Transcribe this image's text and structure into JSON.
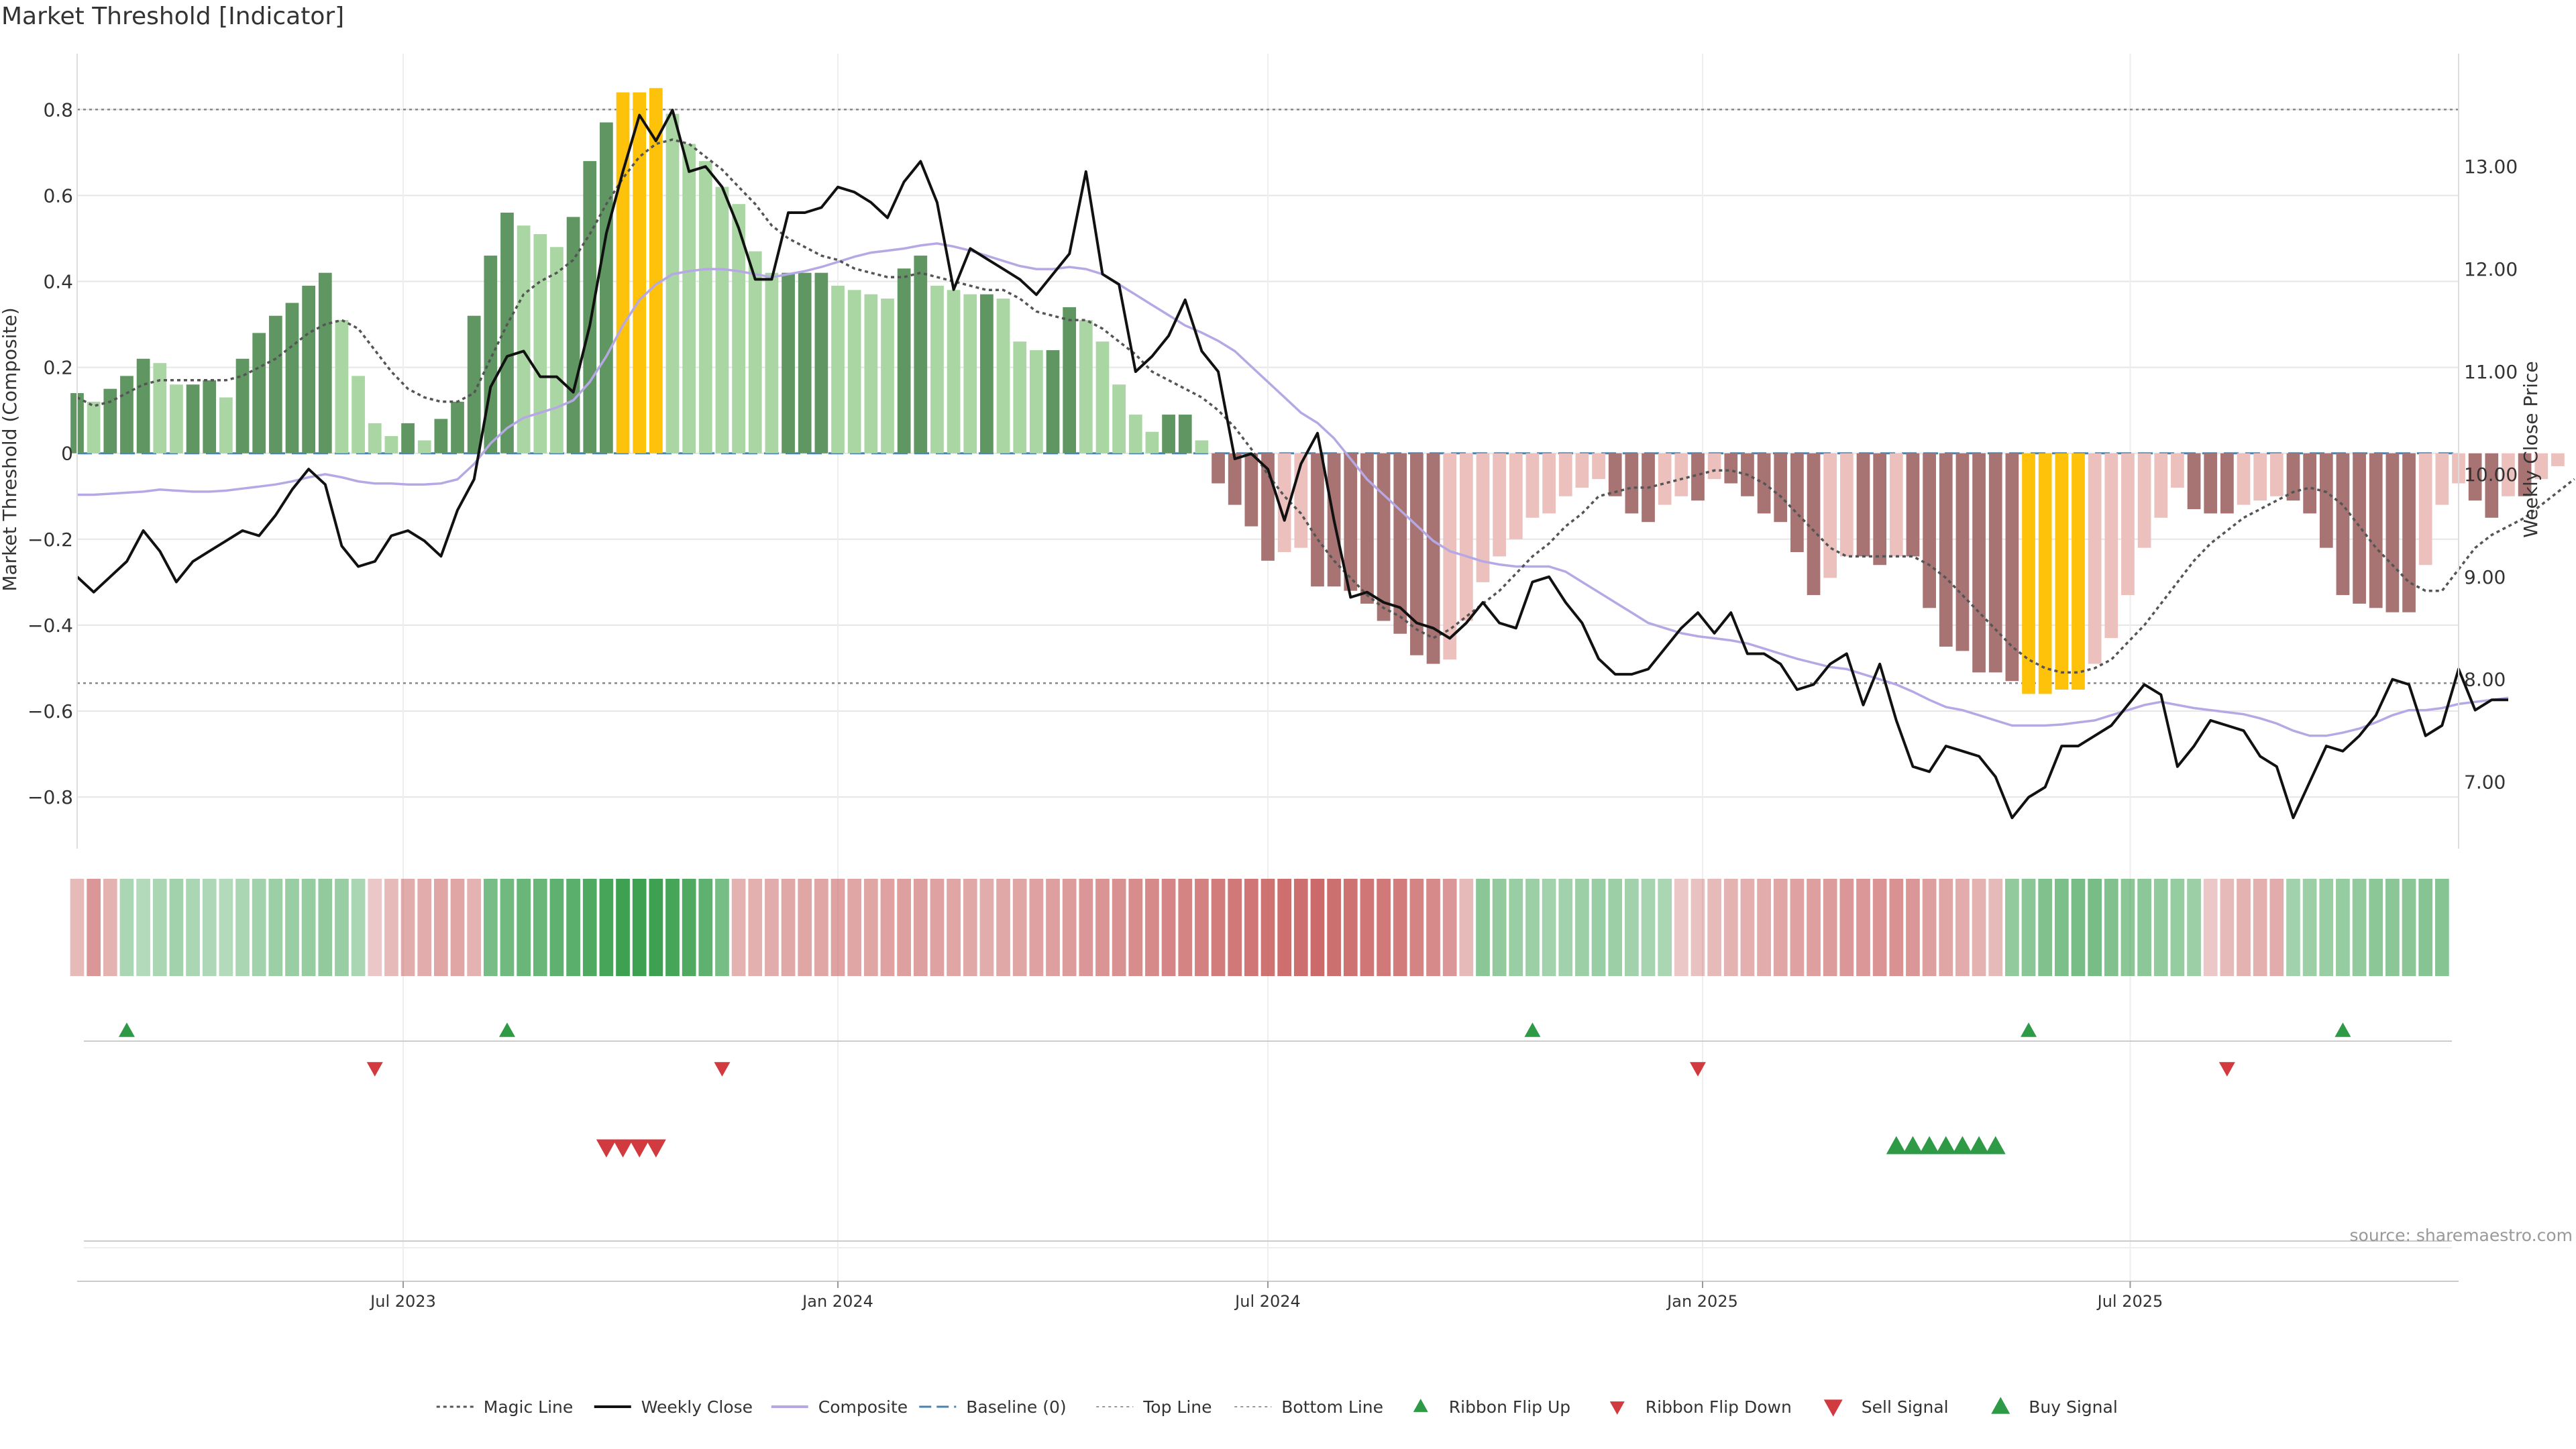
{
  "title": "Market Threshold [Indicator]",
  "source": "source: sharemaestro.com",
  "colors": {
    "bull_dark": "#5f9662",
    "bull_light": "#a9d6a3",
    "bear_dark": "#a77473",
    "bear_light": "#ecc0bd",
    "extreme": "#ffc20a",
    "price": "#111111",
    "composite": "#b6a8e4",
    "magic": "#555555",
    "baseline": "#4b82ab",
    "grid": "#e6e6e6",
    "up_marker": "#2e9a46",
    "down_marker": "#d13a3e"
  },
  "legend": [
    {
      "label": "Magic Line",
      "icon": "dotted-line"
    },
    {
      "label": "Weekly Close",
      "icon": "solid-line"
    },
    {
      "label": "Composite",
      "icon": "purple-line"
    },
    {
      "label": "Baseline (0)",
      "icon": "dashed-line"
    },
    {
      "label": "Top Line",
      "icon": "dotted-line-light"
    },
    {
      "label": "Bottom Line",
      "icon": "dotted-line-light"
    },
    {
      "label": "Ribbon Flip Up",
      "icon": "triangle-up-small"
    },
    {
      "label": "Ribbon Flip Down",
      "icon": "triangle-down-small"
    },
    {
      "label": "Sell Signal",
      "icon": "triangle-down"
    },
    {
      "label": "Buy Signal",
      "icon": "triangle-up"
    }
  ],
  "chart_data": {
    "type": "bar",
    "ylabel": "Market Threshold (Composite)",
    "ylabel_right": "Weekly Close Price",
    "ylim": [
      -0.92,
      0.93
    ],
    "ylim_right": [
      6.35,
      14.1
    ],
    "yticks": [
      -0.8,
      -0.6,
      -0.4,
      -0.2,
      0,
      0.2,
      0.4,
      0.6,
      0.8
    ],
    "ytick_labels": [
      "−0.8",
      "−0.6",
      "−0.4",
      "−0.2",
      "0",
      "0.2",
      "0.4",
      "0.6",
      "0.8"
    ],
    "yticks_right": [
      7,
      8,
      9,
      10,
      11,
      12,
      13
    ],
    "ytick_right_labels": [
      "7.00",
      "8.00",
      "9.00",
      "10.00",
      "11.00",
      "12.00",
      "13.00"
    ],
    "x_range": [
      "2023-02-13",
      "2025-11-17"
    ],
    "xticks": [
      {
        "date": "2023-07-01",
        "label": "Jul 2023"
      },
      {
        "date": "2024-01-01",
        "label": "Jan 2024"
      },
      {
        "date": "2024-07-01",
        "label": "Jul 2024"
      },
      {
        "date": "2025-01-01",
        "label": "Jan 2025"
      },
      {
        "date": "2025-07-01",
        "label": "Jul 2025"
      }
    ],
    "start_week": "2023-02-13",
    "top_line": 0.8,
    "bottom_line": -0.535,
    "baseline": 0,
    "composite_bars": [
      0.14,
      0.12,
      0.15,
      0.18,
      0.22,
      0.21,
      0.16,
      0.16,
      0.17,
      0.13,
      0.22,
      0.28,
      0.32,
      0.35,
      0.39,
      0.42,
      0.31,
      0.18,
      0.07,
      0.04,
      0.07,
      0.03,
      0.08,
      0.12,
      0.32,
      0.46,
      0.56,
      0.53,
      0.51,
      0.48,
      0.55,
      0.68,
      0.77,
      0.84,
      0.84,
      0.85,
      0.79,
      0.72,
      0.68,
      0.62,
      0.58,
      0.47,
      0.42,
      0.42,
      0.42,
      0.42,
      0.39,
      0.38,
      0.37,
      0.36,
      0.43,
      0.46,
      0.39,
      0.38,
      0.37,
      0.37,
      0.36,
      0.26,
      0.24,
      0.24,
      0.34,
      0.31,
      0.26,
      0.16,
      0.09,
      0.05,
      0.09,
      0.09,
      0.03,
      -0.07,
      -0.12,
      -0.17,
      -0.25,
      -0.23,
      -0.22,
      -0.31,
      -0.31,
      -0.32,
      -0.35,
      -0.39,
      -0.42,
      -0.47,
      -0.49,
      -0.48,
      -0.39,
      -0.3,
      -0.24,
      -0.2,
      -0.15,
      -0.14,
      -0.1,
      -0.08,
      -0.06,
      -0.1,
      -0.14,
      -0.16,
      -0.12,
      -0.1,
      -0.11,
      -0.06,
      -0.07,
      -0.1,
      -0.14,
      -0.16,
      -0.23,
      -0.33,
      -0.29,
      -0.24,
      -0.24,
      -0.26,
      -0.24,
      -0.24,
      -0.36,
      -0.45,
      -0.46,
      -0.51,
      -0.51,
      -0.53,
      -0.56,
      -0.56,
      -0.55,
      -0.55,
      -0.49,
      -0.43,
      -0.33,
      -0.22,
      -0.15,
      -0.08,
      -0.13,
      -0.14,
      -0.14,
      -0.12,
      -0.11,
      -0.1,
      -0.11,
      -0.14,
      -0.22,
      -0.33,
      -0.35,
      -0.36,
      -0.37,
      -0.37,
      -0.26,
      -0.12,
      -0.07,
      -0.11,
      -0.15,
      -0.1,
      -0.1,
      -0.06,
      -0.03
    ],
    "magic_line": [
      0.13,
      0.11,
      0.12,
      0.14,
      0.16,
      0.17,
      0.17,
      0.17,
      0.17,
      0.17,
      0.18,
      0.2,
      0.22,
      0.25,
      0.28,
      0.3,
      0.31,
      0.29,
      0.24,
      0.19,
      0.15,
      0.13,
      0.12,
      0.12,
      0.14,
      0.22,
      0.3,
      0.37,
      0.4,
      0.42,
      0.45,
      0.51,
      0.58,
      0.64,
      0.69,
      0.72,
      0.73,
      0.72,
      0.69,
      0.66,
      0.62,
      0.58,
      0.53,
      0.5,
      0.48,
      0.46,
      0.45,
      0.43,
      0.42,
      0.41,
      0.41,
      0.42,
      0.41,
      0.4,
      0.39,
      0.38,
      0.38,
      0.36,
      0.33,
      0.32,
      0.31,
      0.31,
      0.29,
      0.26,
      0.23,
      0.19,
      0.17,
      0.15,
      0.13,
      0.1,
      0.06,
      0.01,
      -0.05,
      -0.1,
      -0.14,
      -0.2,
      -0.25,
      -0.29,
      -0.33,
      -0.36,
      -0.38,
      -0.41,
      -0.43,
      -0.41,
      -0.38,
      -0.35,
      -0.32,
      -0.28,
      -0.24,
      -0.21,
      -0.17,
      -0.14,
      -0.1,
      -0.09,
      -0.08,
      -0.08,
      -0.07,
      -0.06,
      -0.05,
      -0.04,
      -0.04,
      -0.05,
      -0.07,
      -0.1,
      -0.14,
      -0.18,
      -0.22,
      -0.24,
      -0.24,
      -0.24,
      -0.24,
      -0.24,
      -0.26,
      -0.29,
      -0.33,
      -0.37,
      -0.41,
      -0.45,
      -0.48,
      -0.5,
      -0.51,
      -0.51,
      -0.5,
      -0.48,
      -0.44,
      -0.4,
      -0.35,
      -0.3,
      -0.25,
      -0.21,
      -0.18,
      -0.15,
      -0.13,
      -0.11,
      -0.09,
      -0.08,
      -0.09,
      -0.12,
      -0.17,
      -0.22,
      -0.26,
      -0.3,
      -0.32,
      -0.32,
      -0.27,
      -0.22,
      -0.19,
      -0.17,
      -0.15,
      -0.12,
      -0.09,
      -0.06
    ],
    "weekly_close": [
      9.0,
      8.85,
      9.0,
      9.15,
      9.45,
      9.25,
      8.95,
      9.15,
      9.25,
      9.35,
      9.45,
      9.4,
      9.6,
      9.85,
      10.05,
      9.9,
      9.3,
      9.1,
      9.15,
      9.4,
      9.45,
      9.35,
      9.2,
      9.65,
      9.95,
      10.85,
      11.15,
      11.2,
      10.95,
      10.95,
      10.8,
      11.45,
      12.35,
      12.95,
      13.5,
      13.25,
      13.55,
      12.95,
      13.0,
      12.8,
      12.4,
      11.9,
      11.9,
      12.55,
      12.55,
      12.6,
      12.8,
      12.75,
      12.65,
      12.5,
      12.85,
      13.05,
      12.65,
      11.8,
      12.2,
      12.1,
      12.0,
      11.9,
      11.75,
      11.95,
      12.15,
      12.95,
      11.95,
      11.85,
      11.0,
      11.15,
      11.35,
      11.7,
      11.2,
      11.0,
      10.15,
      10.2,
      10.05,
      9.55,
      10.1,
      10.4,
      9.55,
      8.8,
      8.85,
      8.75,
      8.7,
      8.55,
      8.5,
      8.4,
      8.55,
      8.75,
      8.55,
      8.5,
      8.95,
      9.0,
      8.75,
      8.55,
      8.2,
      8.05,
      8.05,
      8.1,
      8.3,
      8.5,
      8.65,
      8.45,
      8.65,
      8.25,
      8.25,
      8.15,
      7.9,
      7.95,
      8.15,
      8.25,
      7.75,
      8.15,
      7.6,
      7.15,
      7.1,
      7.35,
      7.3,
      7.25,
      7.05,
      6.65,
      6.85,
      6.95,
      7.35,
      7.35,
      7.45,
      7.55,
      7.75,
      7.95,
      7.85,
      7.15,
      7.35,
      7.6,
      7.55,
      7.5,
      7.25,
      7.15,
      6.65,
      7.0,
      7.35,
      7.3,
      7.45,
      7.65,
      8.0,
      7.95,
      7.45,
      7.55,
      8.1,
      7.7,
      7.8,
      7.8
    ],
    "composite_line": [
      9.8,
      9.8,
      9.81,
      9.82,
      9.83,
      9.85,
      9.84,
      9.83,
      9.83,
      9.84,
      9.86,
      9.88,
      9.9,
      9.93,
      9.97,
      10.0,
      9.97,
      9.93,
      9.91,
      9.91,
      9.9,
      9.9,
      9.91,
      9.95,
      10.1,
      10.3,
      10.45,
      10.55,
      10.6,
      10.65,
      10.72,
      10.9,
      11.15,
      11.45,
      11.7,
      11.85,
      11.95,
      11.98,
      12.0,
      12.0,
      11.98,
      11.95,
      11.92,
      11.95,
      11.98,
      12.02,
      12.07,
      12.12,
      12.16,
      12.18,
      12.2,
      12.23,
      12.25,
      12.22,
      12.18,
      12.13,
      12.08,
      12.03,
      12.0,
      12.0,
      12.02,
      12.0,
      11.95,
      11.85,
      11.75,
      11.65,
      11.55,
      11.45,
      11.38,
      11.3,
      11.2,
      11.05,
      10.9,
      10.75,
      10.6,
      10.5,
      10.35,
      10.15,
      9.95,
      9.8,
      9.65,
      9.5,
      9.35,
      9.25,
      9.2,
      9.15,
      9.12,
      9.1,
      9.1,
      9.1,
      9.05,
      8.95,
      8.85,
      8.75,
      8.65,
      8.55,
      8.5,
      8.45,
      8.42,
      8.4,
      8.38,
      8.35,
      8.3,
      8.25,
      8.2,
      8.16,
      8.12,
      8.1,
      8.05,
      8.0,
      7.95,
      7.88,
      7.8,
      7.73,
      7.7,
      7.65,
      7.6,
      7.55,
      7.55,
      7.55,
      7.56,
      7.58,
      7.6,
      7.65,
      7.7,
      7.75,
      7.78,
      7.75,
      7.72,
      7.7,
      7.68,
      7.66,
      7.62,
      7.57,
      7.5,
      7.45,
      7.45,
      7.48,
      7.52,
      7.58,
      7.65,
      7.7,
      7.7,
      7.72,
      7.76,
      7.78,
      7.8,
      7.82
    ],
    "ribbon_flip_up": [
      "2023-03-06",
      "2023-08-14",
      "2024-10-21",
      "2025-05-19",
      "2025-09-29"
    ],
    "ribbon_flip_down": [
      "2023-06-19",
      "2023-11-13",
      "2024-12-30",
      "2025-08-11"
    ],
    "sell_signals": [
      "2023-09-25",
      "2023-10-02",
      "2023-10-09",
      "2023-10-16"
    ],
    "buy_signals": [
      "2025-03-24",
      "2025-03-31",
      "2025-04-07",
      "2025-04-14",
      "2025-04-21",
      "2025-04-28",
      "2025-05-05"
    ],
    "ribbon": [
      -0.3,
      -0.55,
      -0.35,
      0.3,
      0.25,
      0.3,
      0.35,
      0.3,
      0.28,
      0.25,
      0.3,
      0.35,
      0.38,
      0.4,
      0.42,
      0.45,
      0.4,
      0.3,
      -0.2,
      -0.3,
      -0.4,
      -0.4,
      -0.45,
      -0.45,
      -0.35,
      0.6,
      0.65,
      0.7,
      0.7,
      0.75,
      0.78,
      0.85,
      0.9,
      0.95,
      0.95,
      0.95,
      0.9,
      0.85,
      0.75,
      0.6,
      -0.35,
      -0.38,
      -0.4,
      -0.42,
      -0.45,
      -0.45,
      -0.48,
      -0.45,
      -0.45,
      -0.48,
      -0.5,
      -0.5,
      -0.48,
      -0.45,
      -0.42,
      -0.4,
      -0.42,
      -0.45,
      -0.48,
      -0.5,
      -0.52,
      -0.55,
      -0.58,
      -0.6,
      -0.62,
      -0.65,
      -0.68,
      -0.7,
      -0.72,
      -0.75,
      -0.78,
      -0.8,
      -0.82,
      -0.85,
      -0.85,
      -0.88,
      -0.85,
      -0.82,
      -0.8,
      -0.78,
      -0.75,
      -0.7,
      -0.65,
      -0.55,
      -0.3,
      0.5,
      0.45,
      0.4,
      0.38,
      0.35,
      0.35,
      0.38,
      0.4,
      0.38,
      0.35,
      0.32,
      0.3,
      -0.2,
      -0.25,
      -0.3,
      -0.35,
      -0.38,
      -0.4,
      -0.45,
      -0.48,
      -0.5,
      -0.52,
      -0.55,
      -0.55,
      -0.58,
      -0.6,
      -0.55,
      -0.5,
      -0.45,
      -0.4,
      -0.35,
      -0.3,
      0.45,
      0.5,
      0.55,
      0.58,
      0.6,
      0.6,
      0.55,
      0.5,
      0.48,
      0.45,
      0.42,
      0.38,
      -0.2,
      -0.3,
      -0.35,
      -0.38,
      -0.4,
      0.35,
      0.38,
      0.4,
      0.42,
      0.45,
      0.48,
      0.5,
      0.5,
      0.52,
      0.52
    ]
  }
}
